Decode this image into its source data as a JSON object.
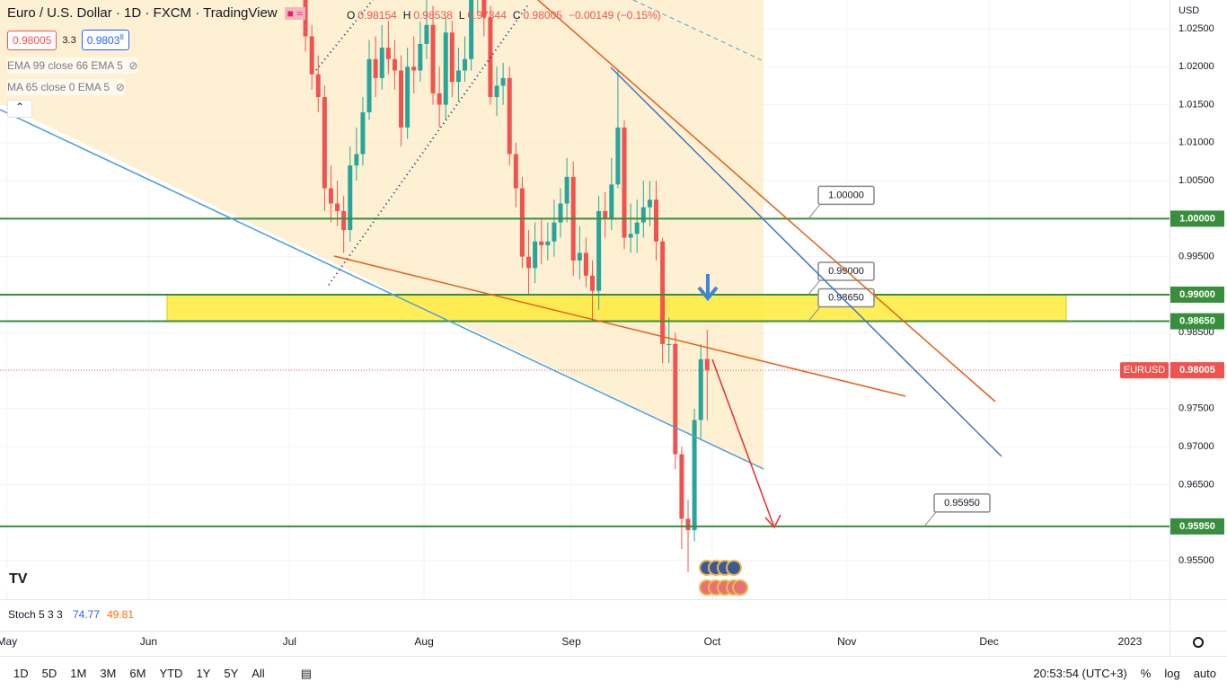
{
  "chart_data": {
    "type": "candlestick",
    "open": [
      1.029,
      1.024,
      1.019,
      1.016,
      1.004,
      1.002,
      1.001,
      0.9985,
      1.007,
      1.0085,
      1.014,
      1.021,
      1.0185,
      1.0225,
      1.021,
      1.0195,
      1.012,
      1.02,
      1.0195,
      1.023,
      1.0255,
      1.0165,
      1.015,
      1.0245,
      1.018,
      1.0195,
      1.021,
      1.029,
      1.032,
      1.0265,
      1.016,
      1.0175,
      1.0185,
      1.0085,
      1.004,
      0.995,
      0.9935,
      0.997,
      0.9965,
      0.997,
      0.9995,
      1.002,
      1.0055,
      0.9945,
      0.9955,
      0.9925,
      0.9905,
      1.001,
      1.0,
      1.0045,
      1.012,
      0.9975,
      0.998,
      0.9995,
      1.0015,
      1.0025,
      0.997,
      0.9835,
      0.9835,
      0.969,
      0.9605,
      0.959,
      0.9735,
      0.98154
    ],
    "high": [
      1.031,
      1.0255,
      1.0215,
      1.0175,
      1.007,
      1.005,
      1.003,
      1.0095,
      1.012,
      1.016,
      1.0235,
      1.024,
      1.0255,
      1.026,
      1.0235,
      1.0215,
      1.0225,
      1.024,
      1.026,
      1.029,
      1.028,
      1.02,
      1.0265,
      1.026,
      1.0225,
      1.024,
      1.031,
      1.034,
      1.0335,
      1.028,
      1.02,
      1.0205,
      1.02,
      1.01,
      1.0055,
      0.9985,
      0.9995,
      1.0,
      0.9995,
      1.0025,
      1.004,
      1.008,
      1.0075,
      0.999,
      0.9975,
      0.9945,
      1.003,
      1.0035,
      1.008,
      1.0195,
      1.013,
      1.002,
      1.0025,
      1.005,
      1.005,
      1.005,
      0.9975,
      0.987,
      0.985,
      0.97,
      0.963,
      0.975,
      0.9835,
      0.98538
    ],
    "low": [
      1.022,
      1.017,
      1.014,
      1.001,
      0.9995,
      0.999,
      0.9955,
      0.997,
      1.005,
      1.007,
      1.013,
      1.016,
      1.017,
      1.019,
      1.017,
      1.0095,
      1.0105,
      1.0165,
      1.018,
      1.021,
      1.015,
      1.012,
      1.013,
      1.016,
      1.0155,
      1.018,
      1.0195,
      1.027,
      1.024,
      1.015,
      1.0135,
      1.015,
      1.007,
      1.0015,
      0.9935,
      0.99,
      0.9915,
      0.994,
      0.9945,
      0.995,
      0.9975,
      0.9995,
      0.9925,
      0.992,
      0.991,
      0.9865,
      0.988,
      0.9975,
      0.9985,
      1.004,
      0.996,
      0.9955,
      0.9955,
      0.9975,
      0.999,
      0.9945,
      0.981,
      0.981,
      0.967,
      0.9565,
      0.9535,
      0.9575,
      0.971,
      0.97344
    ],
    "close": [
      1.024,
      1.019,
      1.016,
      1.004,
      1.002,
      1.001,
      0.9985,
      1.007,
      1.0085,
      1.014,
      1.021,
      1.0185,
      1.0225,
      1.021,
      1.0195,
      1.012,
      1.02,
      1.0195,
      1.023,
      1.0255,
      1.0165,
      1.015,
      1.0245,
      1.018,
      1.0195,
      1.021,
      1.029,
      1.032,
      1.0265,
      1.016,
      1.0175,
      1.0185,
      1.0085,
      1.004,
      0.995,
      0.9935,
      0.997,
      0.9965,
      0.997,
      0.9995,
      1.002,
      1.0055,
      0.9945,
      0.9955,
      0.9925,
      0.9905,
      1.001,
      1.0,
      1.0045,
      1.012,
      0.9975,
      0.998,
      0.9995,
      1.0015,
      1.0025,
      0.997,
      0.9835,
      0.9835,
      0.969,
      0.9605,
      0.959,
      0.9735,
      0.9815,
      0.98005
    ],
    "up_color": "#26a69a",
    "down_color": "#ef5350",
    "xlim": [
      -47.9,
      135.5
    ],
    "xticks": [
      {
        "value": -46.8,
        "label": "May"
      },
      {
        "value": -24.6,
        "label": "Jun"
      },
      {
        "value": -2.5,
        "label": "Jul"
      },
      {
        "value": 18.6,
        "label": "Aug"
      },
      {
        "value": 41.7,
        "label": "Sep"
      },
      {
        "value": 63.8,
        "label": "Oct"
      },
      {
        "value": 84.9,
        "label": "Nov"
      },
      {
        "value": 107.2,
        "label": "Dec"
      },
      {
        "value": 129.3,
        "label": "2023"
      }
    ],
    "ylim": [
      0.94991,
      1.02878
    ],
    "yticks": [
      {
        "value": 1.025,
        "label": "1.02500"
      },
      {
        "value": 1.02,
        "label": "1.02000"
      },
      {
        "value": 1.015,
        "label": "1.01500"
      },
      {
        "value": 1.01,
        "label": "1.01000"
      },
      {
        "value": 1.005,
        "label": "1.00500"
      },
      {
        "value": 0.995,
        "label": "0.99500"
      },
      {
        "value": 0.985,
        "label": "0.98500"
      },
      {
        "value": 0.975,
        "label": "0.97500"
      },
      {
        "value": 0.97,
        "label": "0.97000"
      },
      {
        "value": 0.965,
        "label": "0.96500"
      },
      {
        "value": 0.955,
        "label": "0.95500"
      }
    ],
    "grid": true,
    "levels": [
      {
        "value": 1.0,
        "label": "1.00000"
      },
      {
        "value": 0.99,
        "label": "0.99000"
      },
      {
        "value": 0.9865,
        "label": "0.98650"
      },
      {
        "value": 0.9595,
        "label": "0.95950"
      }
    ],
    "level_color": "#388e3c",
    "last": {
      "name": "EURUSD",
      "value": 0.98005,
      "label": "0.98005"
    },
    "currency": "USD"
  },
  "header": {
    "title": "Euro / U.S. Dollar · 1D · FXCM · TradingView",
    "ohlc": [
      [
        "O",
        "0.98154"
      ],
      [
        "H",
        "0.98538"
      ],
      [
        "L",
        "0.97344"
      ],
      [
        "C",
        "0.98005"
      ]
    ],
    "change": "−0.00149 (−0.15%)",
    "sell": "0.98005",
    "spread": "3.3",
    "buy": "0.9803",
    "buy_pip": "8",
    "indicators": [
      "EMA 99 close 66 EMA 5",
      "MA 65 close 0 EMA 5"
    ]
  },
  "stoch": {
    "name": "Stoch 5 3 3",
    "k": "74.77",
    "d": "49.81"
  },
  "toolbar": {
    "ranges": [
      "1D",
      "5D",
      "1M",
      "3M",
      "6M",
      "YTD",
      "1Y",
      "5Y",
      "All"
    ],
    "time": "20:53:54 (UTC+3)",
    "options": [
      "%",
      "log",
      "auto"
    ]
  }
}
